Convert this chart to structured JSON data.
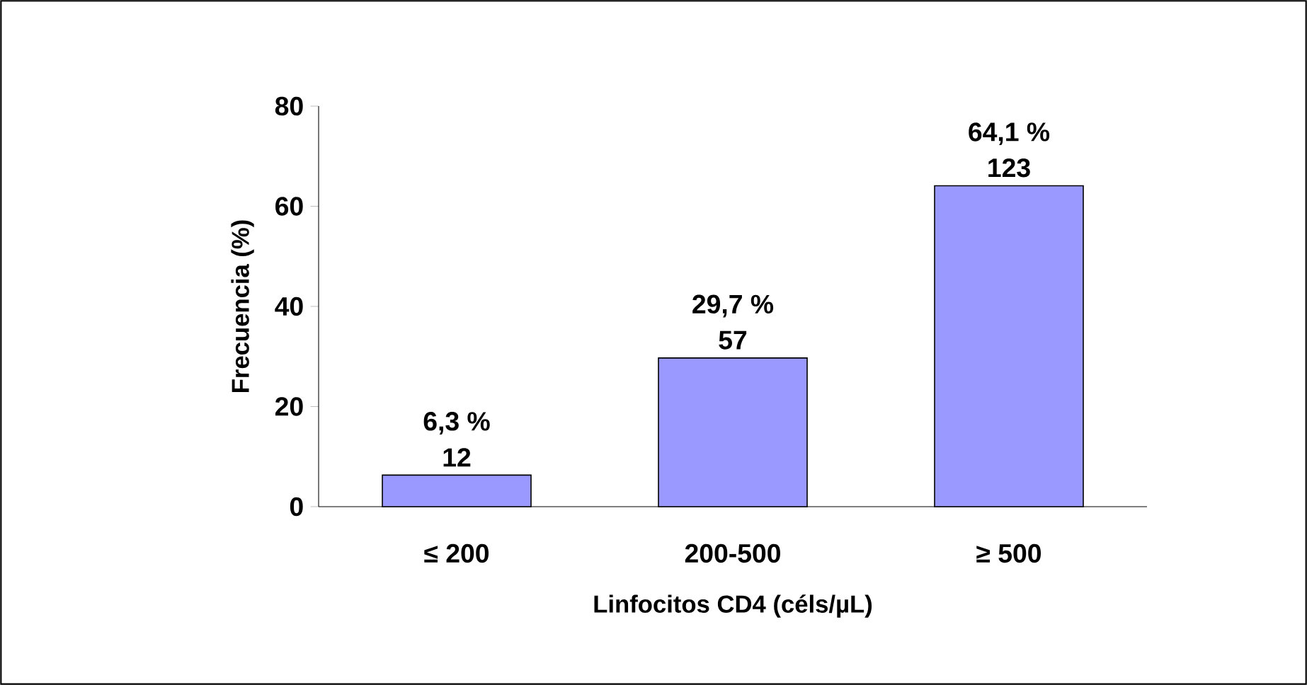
{
  "chart_data": {
    "type": "bar",
    "xlabel": "Linfocitos CD4 (céls/µL)",
    "ylabel": "Frecuencia (%)",
    "categories": [
      "≤ 200",
      "200-500",
      "≥ 500"
    ],
    "values": [
      6.3,
      29.7,
      64.1
    ],
    "color": "#9999ff",
    "value_labels": [
      "6,3 %",
      "29,7 %",
      "64,1 %"
    ],
    "annotations": [
      {
        "text": "12",
        "x": "≤ 200",
        "y": 6.3
      },
      {
        "text": "57",
        "x": "200-500",
        "y": 29.7
      },
      {
        "text": "123",
        "x": "≥ 500",
        "y": 64.1
      }
    ],
    "ylim": [
      0,
      80
    ],
    "yticks": [
      0,
      20,
      40,
      60,
      80
    ]
  }
}
